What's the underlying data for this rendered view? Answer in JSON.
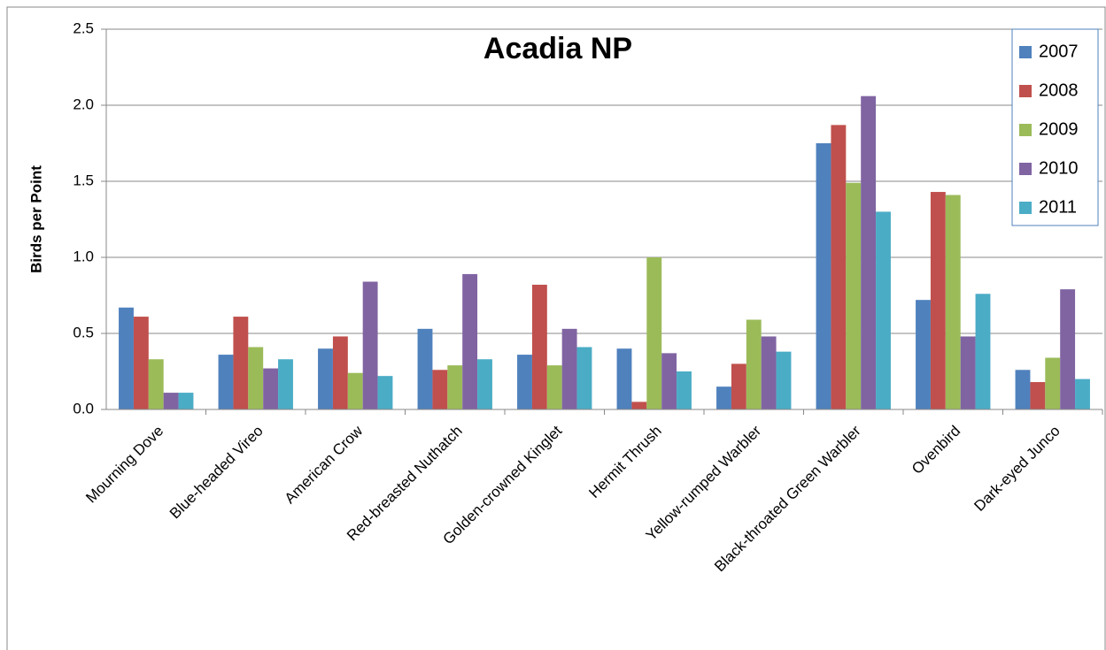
{
  "chart_data": {
    "type": "bar",
    "title": "Acadia NP",
    "y_label": "Birds per Point",
    "categories": [
      "Mourning Dove",
      "Blue-headed Vireo",
      "American Crow",
      "Red-breasted Nuthatch",
      "Golden-crowned Kinglet",
      "Hermit Thrush",
      "Yellow-rumped Warbler",
      "Black-throated Green Warbler",
      "Ovenbird",
      "Dark-eyed Junco"
    ],
    "series": [
      {
        "name": "2007",
        "color": "#4f81bd",
        "values": [
          0.67,
          0.36,
          0.4,
          0.53,
          0.36,
          0.4,
          0.15,
          1.75,
          0.72,
          0.26
        ]
      },
      {
        "name": "2008",
        "color": "#c0504d",
        "values": [
          0.61,
          0.61,
          0.48,
          0.26,
          0.82,
          0.05,
          0.3,
          1.87,
          1.43,
          0.18
        ]
      },
      {
        "name": "2009",
        "color": "#9bbb59",
        "values": [
          0.33,
          0.41,
          0.24,
          0.29,
          0.29,
          1.0,
          0.59,
          1.49,
          1.41,
          0.34
        ]
      },
      {
        "name": "2010",
        "color": "#8064a2",
        "values": [
          0.11,
          0.27,
          0.84,
          0.89,
          0.53,
          0.37,
          0.48,
          2.06,
          0.48,
          0.79
        ]
      },
      {
        "name": "2011",
        "color": "#4bacc6",
        "values": [
          0.11,
          0.33,
          0.22,
          0.33,
          0.41,
          0.25,
          0.38,
          1.3,
          0.76,
          0.2
        ]
      }
    ],
    "ylim": [
      0,
      2.5
    ],
    "yticks": [
      {
        "value": 0,
        "label": "0.0"
      },
      0.5,
      {
        "value": 1,
        "label": "1.0"
      },
      1.5,
      {
        "value": 2,
        "label": "2.0"
      },
      2.5
    ],
    "grid": true,
    "legend": "top-right"
  }
}
